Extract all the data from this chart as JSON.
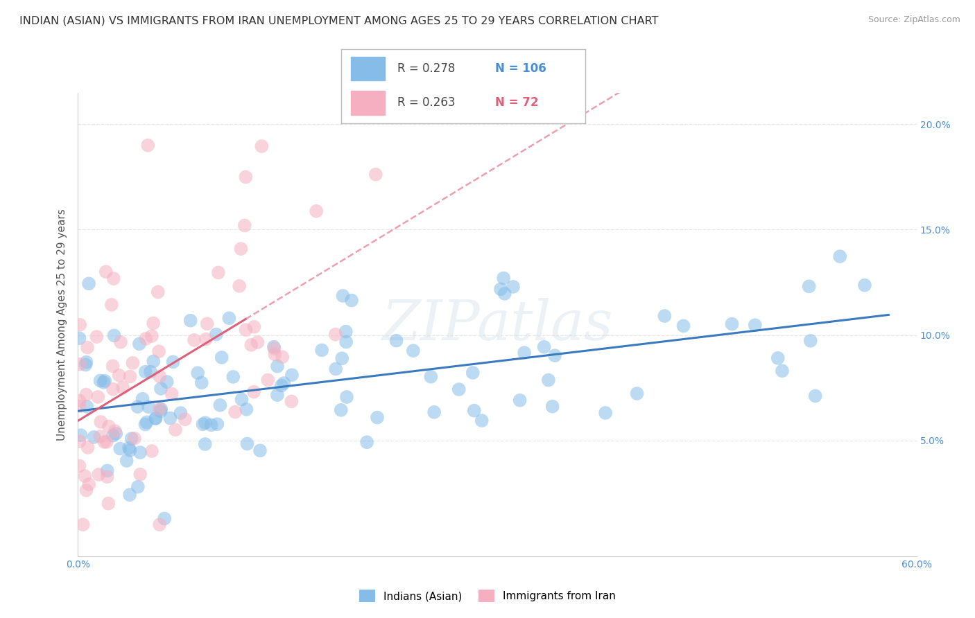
{
  "title": "INDIAN (ASIAN) VS IMMIGRANTS FROM IRAN UNEMPLOYMENT AMONG AGES 25 TO 29 YEARS CORRELATION CHART",
  "source": "Source: ZipAtlas.com",
  "ylabel": "Unemployment Among Ages 25 to 29 years",
  "xlim": [
    0.0,
    0.6
  ],
  "ylim": [
    -0.005,
    0.215
  ],
  "xticks": [
    0.0,
    0.1,
    0.2,
    0.3,
    0.4,
    0.5,
    0.6
  ],
  "xtick_labels": [
    "0.0%",
    "",
    "",
    "",
    "",
    "",
    "60.0%"
  ],
  "yticks": [
    0.0,
    0.05,
    0.1,
    0.15,
    0.2
  ],
  "ytick_labels": [
    "",
    "5.0%",
    "10.0%",
    "15.0%",
    "20.0%"
  ],
  "series1_name": "Indians (Asian)",
  "series1_R": 0.278,
  "series1_N": 106,
  "series1_color": "#85bce8",
  "series1_line_color": "#3a7abf",
  "series2_name": "Immigrants from Iran",
  "series2_R": 0.263,
  "series2_N": 72,
  "series2_color": "#f5afc0",
  "series2_line_color": "#e0607a",
  "watermark": "ZIPatlas",
  "background_color": "#ffffff",
  "grid_color": "#e8e8e8",
  "title_fontsize": 11.5,
  "axis_label_fontsize": 11,
  "tick_fontsize": 10,
  "source_fontsize": 9
}
